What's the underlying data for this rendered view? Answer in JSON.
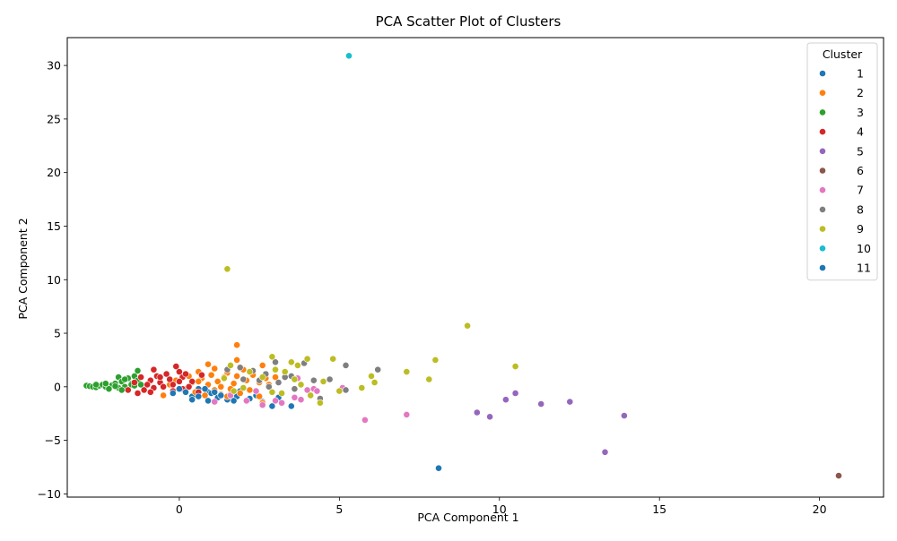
{
  "chart_data": {
    "type": "scatter",
    "title": "PCA Scatter Plot of Clusters",
    "xlabel": "PCA Component 1",
    "ylabel": "PCA Component 2",
    "xlim": [
      -3.5,
      22
    ],
    "ylim": [
      -10.3,
      32.6
    ],
    "xticks": [
      0,
      5,
      10,
      15,
      20
    ],
    "yticks": [
      -10,
      -5,
      0,
      5,
      10,
      15,
      20,
      25,
      30
    ],
    "xtick_labels": [
      "0",
      "5",
      "10",
      "15",
      "20"
    ],
    "ytick_labels": [
      "−10",
      "−5",
      "0",
      "5",
      "10",
      "15",
      "20",
      "25",
      "30"
    ],
    "grid": false,
    "legend": {
      "title": "Cluster",
      "placement": "top-right"
    },
    "series": [
      {
        "name": "1",
        "color": "#1f77b4",
        "points": [
          [
            0.9,
            -0.5
          ],
          [
            1.5,
            -1.2
          ],
          [
            1.8,
            -0.9
          ],
          [
            2.2,
            -1.1
          ],
          [
            2.6,
            -1.4
          ],
          [
            2.9,
            -1.8
          ],
          [
            3.5,
            -1.8
          ],
          [
            1.2,
            -1.0
          ],
          [
            0.4,
            -0.9
          ],
          [
            0.6,
            -0.2
          ],
          [
            1.0,
            -0.6
          ],
          [
            1.9,
            -0.4
          ],
          [
            2.4,
            -0.8
          ],
          [
            3.1,
            -1.0
          ],
          [
            1.6,
            -0.7
          ],
          [
            8.1,
            -7.6
          ]
        ]
      },
      {
        "name": "2",
        "color": "#ff7f0e",
        "points": [
          [
            1.8,
            3.9
          ],
          [
            1.8,
            2.5
          ],
          [
            0.9,
            2.1
          ],
          [
            2.6,
            2.0
          ],
          [
            0.3,
            1.0
          ],
          [
            0.6,
            1.4
          ],
          [
            1.1,
            1.7
          ],
          [
            1.5,
            1.3
          ],
          [
            2.0,
            1.6
          ],
          [
            2.3,
            1.1
          ],
          [
            0.4,
            0.4
          ],
          [
            0.7,
            0.8
          ],
          [
            0.9,
            0.2
          ],
          [
            1.2,
            0.5
          ],
          [
            1.4,
            0.9
          ],
          [
            1.7,
            0.3
          ],
          [
            2.1,
            0.6
          ],
          [
            2.5,
            0.4
          ],
          [
            2.7,
            0.8
          ],
          [
            0.2,
            -0.2
          ],
          [
            0.5,
            -0.5
          ],
          [
            0.8,
            -0.8
          ],
          [
            1.1,
            -0.3
          ],
          [
            1.3,
            -0.7
          ],
          [
            1.6,
            -0.2
          ],
          [
            1.9,
            -0.6
          ],
          [
            2.2,
            -0.3
          ],
          [
            2.5,
            -0.9
          ],
          [
            2.6,
            -1.5
          ],
          [
            -0.3,
            0.2
          ],
          [
            -0.5,
            -0.8
          ],
          [
            -0.1,
            0.6
          ],
          [
            1.0,
            1.1
          ],
          [
            1.3,
            0.0
          ],
          [
            0.6,
            0.5
          ],
          [
            1.8,
            1.0
          ],
          [
            2.8,
            0.2
          ],
          [
            3.0,
            0.9
          ],
          [
            0.1,
            0.9
          ],
          [
            1.5,
            -0.9
          ]
        ]
      },
      {
        "name": "3",
        "color": "#2ca02c",
        "points": [
          [
            -2.9,
            0.1
          ],
          [
            -2.8,
            0.05
          ],
          [
            -2.7,
            0.0
          ],
          [
            -2.6,
            -0.05
          ],
          [
            -2.5,
            0.1
          ],
          [
            -2.4,
            0.2
          ],
          [
            -2.3,
            0.0
          ],
          [
            -2.2,
            -0.1
          ],
          [
            -2.1,
            0.15
          ],
          [
            -2.0,
            0.3
          ],
          [
            -1.9,
            -0.1
          ],
          [
            -1.9,
            0.9
          ],
          [
            -1.8,
            0.5
          ],
          [
            -1.7,
            0.0
          ],
          [
            -1.6,
            0.8
          ],
          [
            -1.5,
            0.3
          ],
          [
            -1.4,
            1.0
          ],
          [
            -1.3,
            1.5
          ],
          [
            -1.3,
            0.6
          ],
          [
            -1.2,
            0.2
          ],
          [
            -2.2,
            -0.2
          ],
          [
            -1.8,
            -0.3
          ],
          [
            -2.6,
            0.2
          ],
          [
            -2.3,
            0.3
          ],
          [
            -1.5,
            0.2
          ],
          [
            -1.7,
            0.7
          ],
          [
            -2.0,
            0.05
          ],
          [
            -1.4,
            0.1
          ]
        ]
      },
      {
        "name": "4",
        "color": "#d62728",
        "points": [
          [
            -0.8,
            1.6
          ],
          [
            -0.1,
            1.9
          ],
          [
            0.0,
            1.4
          ],
          [
            -0.4,
            1.2
          ],
          [
            -0.7,
            1.0
          ],
          [
            -0.9,
            0.6
          ],
          [
            -1.2,
            0.9
          ],
          [
            -1.0,
            0.2
          ],
          [
            -0.6,
            0.4
          ],
          [
            -0.3,
            0.7
          ],
          [
            0.1,
            0.9
          ],
          [
            0.2,
            1.2
          ],
          [
            0.4,
            0.5
          ],
          [
            -0.5,
            0.0
          ],
          [
            -0.8,
            -0.1
          ],
          [
            -1.1,
            -0.3
          ],
          [
            -1.3,
            -0.6
          ],
          [
            -1.6,
            -0.3
          ],
          [
            -0.2,
            0.2
          ],
          [
            0.3,
            0.0
          ],
          [
            0.7,
            1.1
          ],
          [
            0.6,
            -0.5
          ],
          [
            -0.9,
            -0.5
          ],
          [
            -1.4,
            0.4
          ],
          [
            0.0,
            0.5
          ],
          [
            -0.6,
            0.9
          ],
          [
            -0.2,
            -0.4
          ],
          [
            0.1,
            -0.2
          ]
        ]
      },
      {
        "name": "5",
        "color": "#9467bd",
        "points": [
          [
            9.3,
            -2.4
          ],
          [
            9.7,
            -2.8
          ],
          [
            10.2,
            -1.2
          ],
          [
            10.5,
            -0.6
          ],
          [
            11.3,
            -1.6
          ],
          [
            12.2,
            -1.4
          ],
          [
            13.3,
            -6.1
          ],
          [
            13.9,
            -2.7
          ]
        ]
      },
      {
        "name": "6",
        "color": "#8c564b",
        "points": [
          [
            20.6,
            -8.3
          ]
        ]
      },
      {
        "name": "7",
        "color": "#e377c2",
        "points": [
          [
            1.1,
            -1.4
          ],
          [
            2.1,
            -1.3
          ],
          [
            2.6,
            -1.7
          ],
          [
            3.0,
            -1.3
          ],
          [
            3.2,
            -1.5
          ],
          [
            3.6,
            -1.0
          ],
          [
            3.8,
            -1.2
          ],
          [
            4.2,
            -0.2
          ],
          [
            4.3,
            -0.4
          ],
          [
            5.1,
            -0.1
          ],
          [
            5.8,
            -3.1
          ],
          [
            7.1,
            -2.6
          ],
          [
            3.7,
            0.8
          ],
          [
            2.4,
            -0.4
          ],
          [
            1.6,
            -0.8
          ],
          [
            4.0,
            -0.3
          ]
        ]
      },
      {
        "name": "8",
        "color": "#7f7f7f",
        "points": [
          [
            1.5,
            1.6
          ],
          [
            1.9,
            1.8
          ],
          [
            2.3,
            1.5
          ],
          [
            2.7,
            1.2
          ],
          [
            3.0,
            2.3
          ],
          [
            3.3,
            0.9
          ],
          [
            3.5,
            1.0
          ],
          [
            3.9,
            2.2
          ],
          [
            4.2,
            0.6
          ],
          [
            4.7,
            0.7
          ],
          [
            5.2,
            2.0
          ],
          [
            6.2,
            1.6
          ],
          [
            2.0,
            0.7
          ],
          [
            2.8,
            0.0
          ],
          [
            3.1,
            0.4
          ],
          [
            3.6,
            -0.2
          ],
          [
            4.4,
            -1.1
          ],
          [
            5.2,
            -0.3
          ],
          [
            2.5,
            0.6
          ]
        ]
      },
      {
        "name": "9",
        "color": "#bcbd22",
        "points": [
          [
            1.5,
            11.0
          ],
          [
            9.0,
            5.7
          ],
          [
            2.9,
            2.8
          ],
          [
            3.5,
            2.3
          ],
          [
            3.7,
            2.0
          ],
          [
            4.0,
            2.6
          ],
          [
            4.8,
            2.6
          ],
          [
            8.0,
            2.5
          ],
          [
            10.5,
            1.9
          ],
          [
            7.1,
            1.4
          ],
          [
            7.8,
            0.7
          ],
          [
            6.0,
            1.0
          ],
          [
            6.1,
            0.4
          ],
          [
            5.7,
            -0.1
          ],
          [
            4.5,
            0.5
          ],
          [
            4.4,
            -1.5
          ],
          [
            3.2,
            -0.6
          ],
          [
            2.9,
            -0.5
          ],
          [
            3.3,
            1.4
          ],
          [
            3.6,
            0.7
          ],
          [
            2.6,
            0.9
          ],
          [
            2.2,
            1.4
          ],
          [
            1.6,
            2.0
          ],
          [
            1.4,
            0.8
          ],
          [
            1.7,
            -0.4
          ],
          [
            3.0,
            1.6
          ],
          [
            3.8,
            0.2
          ],
          [
            4.1,
            -0.8
          ],
          [
            2.0,
            -0.1
          ],
          [
            5.0,
            -0.4
          ]
        ]
      },
      {
        "name": "10",
        "color": "#17becf",
        "points": [
          [
            5.3,
            30.9
          ]
        ]
      },
      {
        "name": "11",
        "color": "#1f77b4",
        "points": [
          [
            0.0,
            -0.2
          ],
          [
            0.2,
            -0.5
          ],
          [
            0.4,
            -1.2
          ],
          [
            0.9,
            -1.3
          ],
          [
            1.3,
            -0.8
          ],
          [
            1.7,
            -1.3
          ],
          [
            0.6,
            -0.9
          ],
          [
            -0.2,
            -0.6
          ],
          [
            0.8,
            -0.2
          ],
          [
            1.1,
            -0.5
          ]
        ]
      }
    ]
  }
}
